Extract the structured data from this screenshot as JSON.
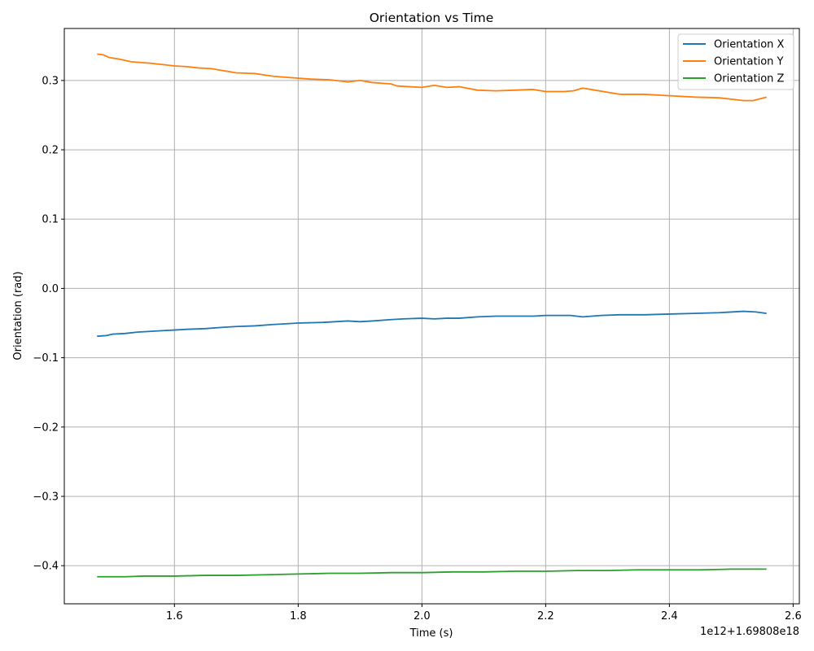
{
  "chart_data": {
    "type": "line",
    "title": "Orientation vs Time",
    "xlabel": "Time (s)",
    "ylabel": "Orientation (rad)",
    "x_offset_label": "1e12+1.69808e18",
    "xlim": [
      1.422,
      2.61
    ],
    "ylim": [
      -0.455,
      0.375
    ],
    "x_ticks": [
      {
        "value": 1.6,
        "label": "1.6"
      },
      {
        "value": 1.8,
        "label": "1.8"
      },
      {
        "value": 2.0,
        "label": "2.0"
      },
      {
        "value": 2.2,
        "label": "2.2"
      },
      {
        "value": 2.4,
        "label": "2.4"
      },
      {
        "value": 2.6,
        "label": "2.6"
      }
    ],
    "y_ticks": [
      {
        "value": 0.3,
        "label": "0.3"
      },
      {
        "value": 0.2,
        "label": "0.2"
      },
      {
        "value": 0.1,
        "label": "0.1"
      },
      {
        "value": 0.0,
        "label": "0.0"
      },
      {
        "value": -0.1,
        "label": "−0.1"
      },
      {
        "value": -0.2,
        "label": "−0.2"
      },
      {
        "value": -0.3,
        "label": "−0.3"
      },
      {
        "value": -0.4,
        "label": "−0.4"
      }
    ],
    "grid": true,
    "legend_position": "top-right",
    "series": [
      {
        "name": "Orientation X",
        "color": "#1f77b4",
        "points": [
          [
            1.475,
            -0.069
          ],
          [
            1.49,
            -0.068
          ],
          [
            1.5,
            -0.066
          ],
          [
            1.52,
            -0.065
          ],
          [
            1.54,
            -0.063
          ],
          [
            1.56,
            -0.062
          ],
          [
            1.58,
            -0.061
          ],
          [
            1.6,
            -0.06
          ],
          [
            1.62,
            -0.059
          ],
          [
            1.65,
            -0.058
          ],
          [
            1.68,
            -0.056
          ],
          [
            1.7,
            -0.055
          ],
          [
            1.73,
            -0.054
          ],
          [
            1.76,
            -0.052
          ],
          [
            1.8,
            -0.05
          ],
          [
            1.84,
            -0.049
          ],
          [
            1.88,
            -0.047
          ],
          [
            1.9,
            -0.048
          ],
          [
            1.92,
            -0.047
          ],
          [
            1.95,
            -0.045
          ],
          [
            1.97,
            -0.044
          ],
          [
            2.0,
            -0.043
          ],
          [
            2.02,
            -0.044
          ],
          [
            2.04,
            -0.043
          ],
          [
            2.06,
            -0.043
          ],
          [
            2.09,
            -0.041
          ],
          [
            2.12,
            -0.04
          ],
          [
            2.15,
            -0.04
          ],
          [
            2.18,
            -0.04
          ],
          [
            2.2,
            -0.039
          ],
          [
            2.24,
            -0.039
          ],
          [
            2.26,
            -0.041
          ],
          [
            2.29,
            -0.039
          ],
          [
            2.32,
            -0.038
          ],
          [
            2.36,
            -0.038
          ],
          [
            2.4,
            -0.037
          ],
          [
            2.44,
            -0.036
          ],
          [
            2.48,
            -0.035
          ],
          [
            2.52,
            -0.033
          ],
          [
            2.54,
            -0.034
          ],
          [
            2.557,
            -0.036
          ]
        ]
      },
      {
        "name": "Orientation Y",
        "color": "#ff7f0e",
        "points": [
          [
            1.475,
            0.338
          ],
          [
            1.485,
            0.337
          ],
          [
            1.49,
            0.335
          ],
          [
            1.495,
            0.333
          ],
          [
            1.51,
            0.331
          ],
          [
            1.53,
            0.327
          ],
          [
            1.56,
            0.325
          ],
          [
            1.58,
            0.323
          ],
          [
            1.6,
            0.321
          ],
          [
            1.62,
            0.32
          ],
          [
            1.64,
            0.318
          ],
          [
            1.66,
            0.317
          ],
          [
            1.68,
            0.314
          ],
          [
            1.7,
            0.311
          ],
          [
            1.73,
            0.31
          ],
          [
            1.76,
            0.306
          ],
          [
            1.79,
            0.304
          ],
          [
            1.82,
            0.302
          ],
          [
            1.85,
            0.301
          ],
          [
            1.88,
            0.298
          ],
          [
            1.9,
            0.3
          ],
          [
            1.92,
            0.297
          ],
          [
            1.95,
            0.295
          ],
          [
            1.96,
            0.292
          ],
          [
            1.98,
            0.291
          ],
          [
            2.0,
            0.29
          ],
          [
            2.02,
            0.293
          ],
          [
            2.04,
            0.29
          ],
          [
            2.06,
            0.291
          ],
          [
            2.09,
            0.286
          ],
          [
            2.12,
            0.285
          ],
          [
            2.15,
            0.286
          ],
          [
            2.18,
            0.287
          ],
          [
            2.2,
            0.284
          ],
          [
            2.23,
            0.284
          ],
          [
            2.245,
            0.285
          ],
          [
            2.26,
            0.289
          ],
          [
            2.28,
            0.286
          ],
          [
            2.3,
            0.283
          ],
          [
            2.32,
            0.28
          ],
          [
            2.36,
            0.28
          ],
          [
            2.4,
            0.278
          ],
          [
            2.44,
            0.276
          ],
          [
            2.48,
            0.275
          ],
          [
            2.52,
            0.271
          ],
          [
            2.535,
            0.271
          ],
          [
            2.557,
            0.276
          ]
        ]
      },
      {
        "name": "Orientation Z",
        "color": "#2ca02c",
        "points": [
          [
            1.475,
            -0.416
          ],
          [
            1.5,
            -0.416
          ],
          [
            1.52,
            -0.416
          ],
          [
            1.55,
            -0.415
          ],
          [
            1.6,
            -0.415
          ],
          [
            1.65,
            -0.414
          ],
          [
            1.7,
            -0.414
          ],
          [
            1.75,
            -0.413
          ],
          [
            1.8,
            -0.412
          ],
          [
            1.85,
            -0.411
          ],
          [
            1.9,
            -0.411
          ],
          [
            1.95,
            -0.41
          ],
          [
            2.0,
            -0.41
          ],
          [
            2.05,
            -0.409
          ],
          [
            2.1,
            -0.409
          ],
          [
            2.15,
            -0.408
          ],
          [
            2.2,
            -0.408
          ],
          [
            2.25,
            -0.407
          ],
          [
            2.3,
            -0.407
          ],
          [
            2.35,
            -0.406
          ],
          [
            2.4,
            -0.406
          ],
          [
            2.45,
            -0.406
          ],
          [
            2.5,
            -0.405
          ],
          [
            2.557,
            -0.405
          ]
        ]
      }
    ]
  }
}
